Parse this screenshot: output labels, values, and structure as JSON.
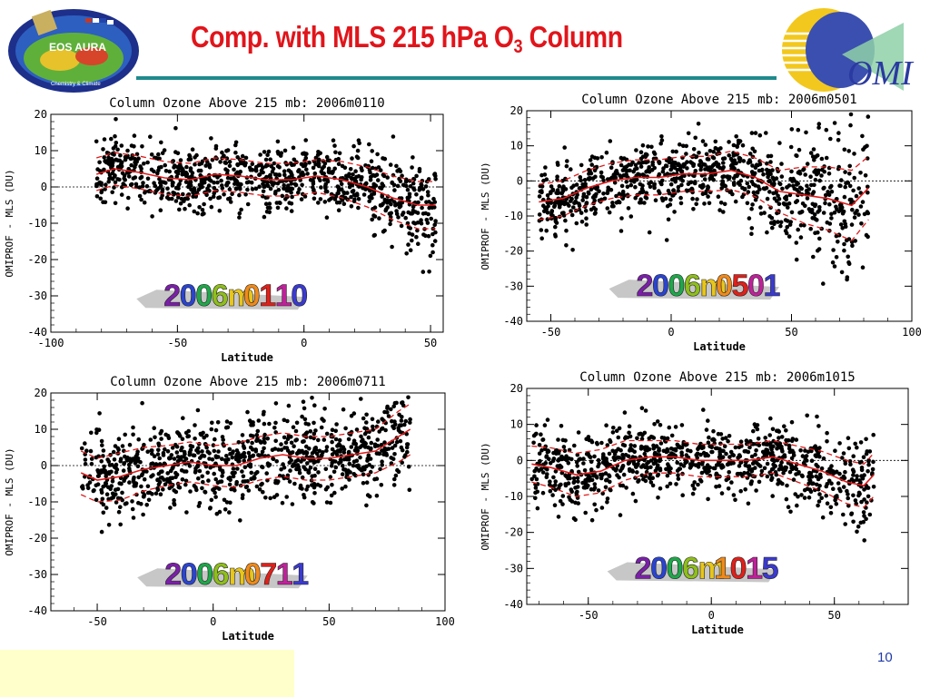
{
  "slide": {
    "title_main": "Comp. with MLS 215 hPa O",
    "title_sub": "3",
    "title_end": " Column",
    "page_number": "10",
    "logo_left_text": "EOS AURA",
    "logo_left_caption": "Chemistry & Climate",
    "logo_right_text": "OMI"
  },
  "chart_data": [
    {
      "type": "scatter",
      "title": "Column Ozone Above 215 mb: 2006m0110",
      "xlabel": "Latitude",
      "ylabel": "OMIPROF - MLS (DU)",
      "xlim": [
        -100,
        55
      ],
      "ylim": [
        -40,
        20
      ],
      "xticks": [
        -100,
        -50,
        0,
        50
      ],
      "yticks": [
        -40,
        -30,
        -20,
        -10,
        0,
        10,
        20
      ],
      "stamp": "2006m0110",
      "x_range": [
        -82,
        52
      ],
      "mean": [
        [
          -82,
          3.5
        ],
        [
          -75,
          5
        ],
        [
          -65,
          4
        ],
        [
          -55,
          2.5
        ],
        [
          -45,
          2
        ],
        [
          -35,
          3.5
        ],
        [
          -25,
          3
        ],
        [
          -15,
          2
        ],
        [
          -5,
          2
        ],
        [
          5,
          3
        ],
        [
          15,
          2
        ],
        [
          25,
          0
        ],
        [
          35,
          -3
        ],
        [
          45,
          -5
        ],
        [
          52,
          -5
        ]
      ],
      "spread": [
        4.5,
        4.5,
        4.5,
        4.5,
        4.5,
        4.5,
        4.5,
        4.5,
        4.5,
        4.5,
        5,
        5.5,
        6,
        6.5,
        6.5
      ],
      "seed": 11
    },
    {
      "type": "scatter",
      "title": "Column Ozone Above 215 mb: 2006m0501",
      "xlabel": "Latitude",
      "ylabel": "OMIPROF - MLS (DU)",
      "xlim": [
        -60,
        100
      ],
      "ylim": [
        -40,
        20
      ],
      "xticks": [
        -50,
        0,
        50,
        100
      ],
      "yticks": [
        -40,
        -30,
        -20,
        -10,
        0,
        10,
        20
      ],
      "stamp": "2006m0501",
      "x_range": [
        -55,
        82
      ],
      "mean": [
        [
          -55,
          -6
        ],
        [
          -45,
          -5
        ],
        [
          -35,
          -2
        ],
        [
          -25,
          0
        ],
        [
          -15,
          1
        ],
        [
          -5,
          1
        ],
        [
          5,
          2
        ],
        [
          15,
          2
        ],
        [
          25,
          3
        ],
        [
          35,
          1
        ],
        [
          45,
          -3
        ],
        [
          55,
          -4
        ],
        [
          65,
          -5
        ],
        [
          75,
          -7
        ],
        [
          82,
          -2
        ]
      ],
      "spread": [
        5,
        5,
        5,
        5,
        5,
        5,
        5,
        5,
        5.5,
        5.5,
        6,
        8,
        9,
        10,
        9
      ],
      "seed": 23
    },
    {
      "type": "scatter",
      "title": "Column Ozone Above 215 mb: 2006m0711",
      "xlabel": "Latitude",
      "ylabel": "OMIPROF - MLS (DU)",
      "xlim": [
        -70,
        100
      ],
      "ylim": [
        -40,
        20
      ],
      "xticks": [
        -50,
        0,
        50,
        100
      ],
      "yticks": [
        -40,
        -30,
        -20,
        -10,
        0,
        10,
        20
      ],
      "stamp": "2006m0711",
      "x_range": [
        -57,
        85
      ],
      "mean": [
        [
          -57,
          -2
        ],
        [
          -50,
          -4
        ],
        [
          -40,
          -3
        ],
        [
          -30,
          -1
        ],
        [
          -20,
          0
        ],
        [
          -10,
          1
        ],
        [
          0,
          0
        ],
        [
          10,
          0
        ],
        [
          20,
          2
        ],
        [
          30,
          3
        ],
        [
          40,
          2
        ],
        [
          50,
          2
        ],
        [
          60,
          3
        ],
        [
          70,
          4
        ],
        [
          80,
          8
        ],
        [
          85,
          10
        ]
      ],
      "spread": [
        6,
        6,
        6.5,
        6,
        5.5,
        5.5,
        5.5,
        6,
        6,
        6,
        6,
        6,
        6,
        6,
        7,
        7
      ],
      "seed": 37
    },
    {
      "type": "scatter",
      "title": "Column Ozone Above 215 mb: 2006m1015",
      "xlabel": "Latitude",
      "ylabel": "OMIPROF - MLS (DU)",
      "xlim": [
        -75,
        80
      ],
      "ylim": [
        -40,
        20
      ],
      "xticks": [
        -50,
        0,
        50
      ],
      "yticks": [
        -40,
        -30,
        -20,
        -10,
        0,
        10,
        20
      ],
      "stamp": "2006m1015",
      "x_range": [
        -73,
        66
      ],
      "mean": [
        [
          -73,
          -1
        ],
        [
          -65,
          -2
        ],
        [
          -55,
          -4
        ],
        [
          -45,
          -3
        ],
        [
          -35,
          0
        ],
        [
          -25,
          1
        ],
        [
          -15,
          1
        ],
        [
          -5,
          0
        ],
        [
          5,
          0
        ],
        [
          15,
          0
        ],
        [
          25,
          1
        ],
        [
          35,
          -1
        ],
        [
          45,
          -3
        ],
        [
          55,
          -6
        ],
        [
          62,
          -7
        ],
        [
          66,
          -4
        ]
      ],
      "spread": [
        5,
        5.5,
        6,
        6,
        5.5,
        4.5,
        4.5,
        4.5,
        4.5,
        4.5,
        4.5,
        5,
        5.5,
        6,
        6,
        6
      ],
      "seed": 53
    }
  ]
}
